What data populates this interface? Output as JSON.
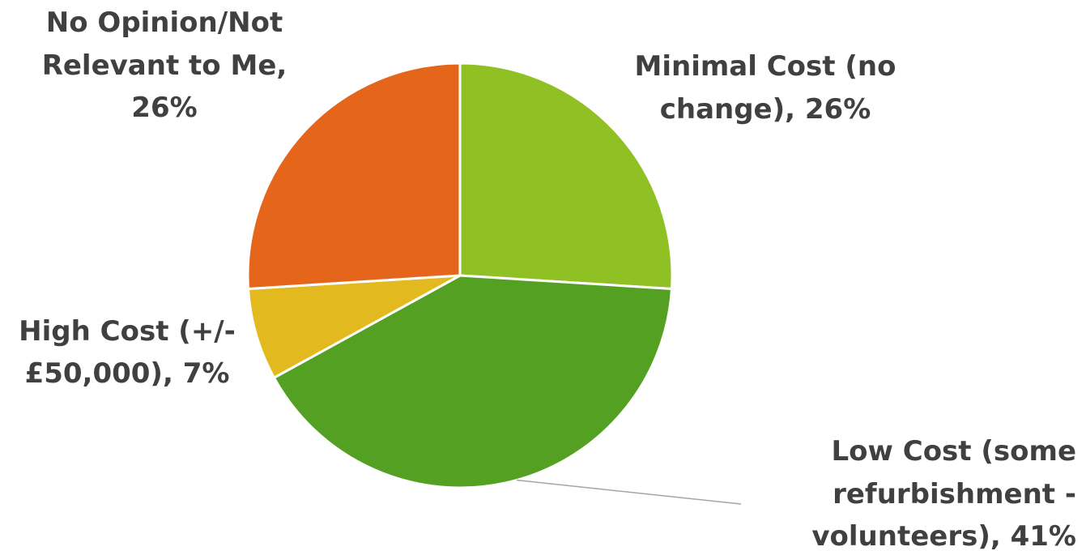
{
  "chart_data": {
    "type": "pie",
    "title": "",
    "slices": [
      {
        "label": "Minimal Cost (no change)",
        "value": 26,
        "display": "26%",
        "color": "#8fc024"
      },
      {
        "label": "Low Cost (some refurbishment - volunteers)",
        "value": 41,
        "display": "41%",
        "color": "#54a023"
      },
      {
        "label": "High Cost (+/- £50,000)",
        "value": 7,
        "display": "7%",
        "color": "#e3b920"
      },
      {
        "label": "No Opinion/Not Relevant to Me",
        "value": 26,
        "display": "26%",
        "color": "#e5661a"
      }
    ],
    "data_labels": [
      [
        "Minimal Cost (no",
        "change), 26%"
      ],
      [
        "Low Cost (some",
        "refurbishment -",
        "volunteers), 41%"
      ],
      [
        "High Cost (+/-",
        "£50,000), 7%"
      ],
      [
        "No Opinion/Not",
        "Relevant to Me,",
        "26%"
      ]
    ],
    "start_angle_deg": 0,
    "direction": "clockwise",
    "legend": "none"
  },
  "colors": {
    "background": "#ffffff",
    "label_text": "#404040",
    "slice_border": "#ffffff",
    "leader_line": "#a6a6a6"
  }
}
